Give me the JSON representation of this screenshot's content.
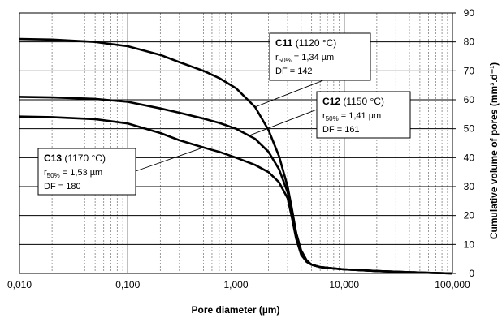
{
  "chart_data": {
    "type": "line",
    "title": "",
    "xlabel": "Pore diameter (µm)",
    "ylabel": "Cumulative volume of pores (mm³.d⁻¹)",
    "x_scale": "log",
    "xlim": [
      0.01,
      100
    ],
    "ylim": [
      0,
      90
    ],
    "x_ticks": [
      "0,010",
      "0,100",
      "1,000",
      "10,000",
      "100,000"
    ],
    "y_ticks": [
      "0",
      "10",
      "20",
      "30",
      "40",
      "50",
      "60",
      "70",
      "80",
      "90"
    ],
    "grid": true,
    "series": [
      {
        "name": "C11",
        "x": [
          0.01,
          0.02,
          0.05,
          0.1,
          0.2,
          0.3,
          0.5,
          0.7,
          1.0,
          1.5,
          2.0,
          2.5,
          3.0,
          3.3,
          3.6,
          4.0,
          4.5,
          5.0,
          6.0,
          8.0,
          10.0,
          20.0,
          50.0,
          100.0
        ],
        "y": [
          81,
          80.8,
          80,
          78.5,
          75.5,
          73,
          70,
          67.5,
          64,
          57.5,
          49.5,
          40.5,
          30,
          22,
          14,
          7,
          4,
          3,
          2.2,
          1.7,
          1.4,
          0.8,
          0.3,
          0
        ]
      },
      {
        "name": "C12",
        "x": [
          0.01,
          0.02,
          0.05,
          0.1,
          0.2,
          0.3,
          0.5,
          0.7,
          1.0,
          1.5,
          2.0,
          2.5,
          3.0,
          3.3,
          3.6,
          4.0,
          4.5,
          5.0,
          6.0,
          8.0,
          10.0,
          20.0,
          50.0,
          100.0
        ],
        "y": [
          61,
          60.8,
          60.3,
          59.3,
          57,
          55.5,
          53.5,
          52,
          50,
          46.5,
          42,
          36,
          28,
          21,
          14,
          8,
          4.5,
          3,
          2.2,
          1.7,
          1.4,
          0.8,
          0.3,
          0
        ]
      },
      {
        "name": "C13",
        "x": [
          0.01,
          0.02,
          0.05,
          0.1,
          0.2,
          0.3,
          0.5,
          0.7,
          1.0,
          1.5,
          2.0,
          2.5,
          3.0,
          3.3,
          3.6,
          4.0,
          4.5,
          5.0,
          6.0,
          8.0,
          10.0,
          20.0,
          50.0,
          100.0
        ],
        "y": [
          54.2,
          54,
          53.3,
          51.8,
          48.5,
          46,
          43.5,
          42,
          40,
          37.5,
          35,
          31.5,
          26,
          19,
          12,
          6.5,
          4,
          3,
          2.2,
          1.7,
          1.4,
          0.8,
          0.3,
          0
        ]
      }
    ],
    "annotations": [
      {
        "series": "C11",
        "name": "C11",
        "temp": " (1120 °C)",
        "r_sym": "r",
        "r_sub": "50%",
        "r_val": " = 1,34 µm",
        "df": "DF = 142"
      },
      {
        "series": "C12",
        "name": "C12",
        "temp": " (1150 °C)",
        "r_sym": "r",
        "r_sub": "50%",
        "r_val": " = 1,41 µm",
        "df": "DF = 161"
      },
      {
        "series": "C13",
        "name": "C13",
        "temp": " (1170 °C)",
        "r_sym": "r",
        "r_sub": "50%",
        "r_val": " = 1,53 µm",
        "df": "DF = 180"
      }
    ],
    "colors": {
      "line": "#000000",
      "grid_major": "#000000",
      "grid_minor": "#808080"
    }
  }
}
